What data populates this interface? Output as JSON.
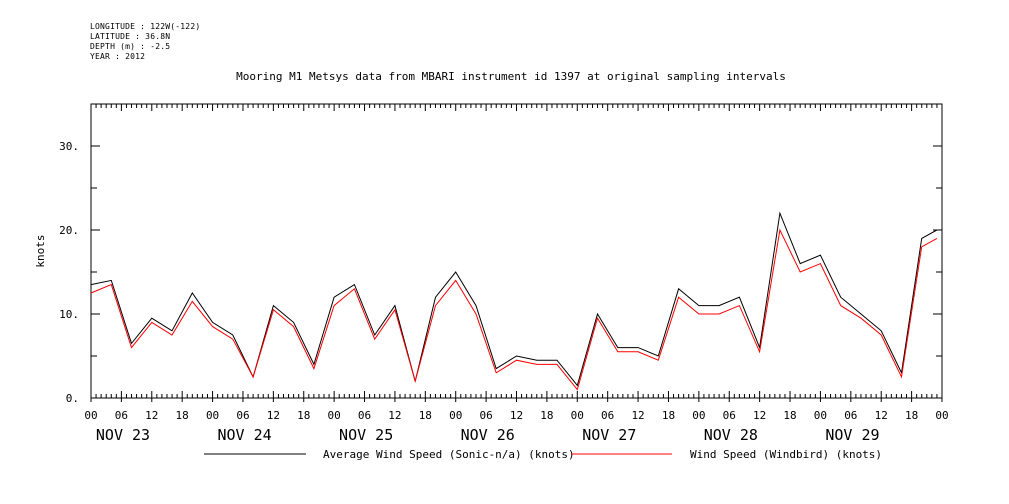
{
  "meta": {
    "longitude": "LONGITUDE : 122W(-122)",
    "latitude": "LATITUDE : 36.8N",
    "depth": "DEPTH (m) : -2.5",
    "year": "YEAR : 2012"
  },
  "chart_data": {
    "type": "line",
    "title": "Mooring M1 Metsys data from MBARI instrument id 1397 at original sampling intervals",
    "ylabel": "knots",
    "xlabel": "",
    "xlim": [
      "2012-11-23T00:00",
      "2012-11-30T00:00"
    ],
    "ylim": [
      0,
      35
    ],
    "y_ticks": [
      0,
      5,
      10,
      15,
      20,
      25,
      30,
      35
    ],
    "y_tick_labels": [
      "0.",
      "10.",
      "20.",
      "30."
    ],
    "y_labeled_ticks": [
      0,
      10,
      20,
      30
    ],
    "x_hour_tick_labels": [
      "00",
      "06",
      "12",
      "18"
    ],
    "x_day_labels": [
      "NOV 23",
      "NOV 24",
      "NOV 25",
      "NOV 26",
      "NOV 27",
      "NOV 28",
      "NOV 29"
    ],
    "x_end_tick_label": "00",
    "grid": false,
    "legend_position": "bottom",
    "series": [
      {
        "name": "Average Wind Speed (Sonic-n/a) (knots)",
        "color": "#000000",
        "x": [
          "2012-11-23T00:00",
          "2012-11-23T04:00",
          "2012-11-23T08:00",
          "2012-11-23T12:00",
          "2012-11-23T16:00",
          "2012-11-23T20:00",
          "2012-11-24T00:00",
          "2012-11-24T04:00",
          "2012-11-24T08:00",
          "2012-11-24T12:00",
          "2012-11-24T16:00",
          "2012-11-24T20:00",
          "2012-11-25T00:00",
          "2012-11-25T04:00",
          "2012-11-25T08:00",
          "2012-11-25T12:00",
          "2012-11-25T16:00",
          "2012-11-25T20:00",
          "2012-11-26T00:00",
          "2012-11-26T04:00",
          "2012-11-26T08:00",
          "2012-11-26T12:00",
          "2012-11-26T16:00",
          "2012-11-26T20:00",
          "2012-11-27T00:00",
          "2012-11-27T04:00",
          "2012-11-27T08:00",
          "2012-11-27T12:00",
          "2012-11-27T16:00",
          "2012-11-27T20:00",
          "2012-11-28T00:00",
          "2012-11-28T04:00",
          "2012-11-28T08:00",
          "2012-11-28T12:00",
          "2012-11-28T16:00",
          "2012-11-28T20:00",
          "2012-11-29T00:00",
          "2012-11-29T04:00",
          "2012-11-29T08:00",
          "2012-11-29T12:00",
          "2012-11-29T16:00",
          "2012-11-29T20:00",
          "2012-11-29T23:00"
        ],
        "y": [
          13.5,
          14,
          6.5,
          9.5,
          8,
          12.5,
          9,
          7.5,
          2.5,
          11,
          9,
          4,
          12,
          13.5,
          7.5,
          11,
          2,
          12,
          15,
          11,
          3.5,
          5,
          4.5,
          4.5,
          1.5,
          10,
          6,
          6,
          5,
          13,
          11,
          11,
          12,
          6,
          22,
          16,
          17,
          12,
          10,
          8,
          3,
          19,
          20
        ]
      },
      {
        "name": "Wind Speed (Windbird) (knots)",
        "color": "#ff0000",
        "x": [
          "2012-11-23T00:00",
          "2012-11-23T04:00",
          "2012-11-23T08:00",
          "2012-11-23T12:00",
          "2012-11-23T16:00",
          "2012-11-23T20:00",
          "2012-11-24T00:00",
          "2012-11-24T04:00",
          "2012-11-24T08:00",
          "2012-11-24T12:00",
          "2012-11-24T16:00",
          "2012-11-24T20:00",
          "2012-11-25T00:00",
          "2012-11-25T04:00",
          "2012-11-25T08:00",
          "2012-11-25T12:00",
          "2012-11-25T16:00",
          "2012-11-25T20:00",
          "2012-11-26T00:00",
          "2012-11-26T04:00",
          "2012-11-26T08:00",
          "2012-11-26T12:00",
          "2012-11-26T16:00",
          "2012-11-26T20:00",
          "2012-11-27T00:00",
          "2012-11-27T04:00",
          "2012-11-27T08:00",
          "2012-11-27T12:00",
          "2012-11-27T16:00",
          "2012-11-27T20:00",
          "2012-11-28T00:00",
          "2012-11-28T04:00",
          "2012-11-28T08:00",
          "2012-11-28T12:00",
          "2012-11-28T16:00",
          "2012-11-28T20:00",
          "2012-11-29T00:00",
          "2012-11-29T04:00",
          "2012-11-29T08:00",
          "2012-11-29T12:00",
          "2012-11-29T16:00",
          "2012-11-29T20:00",
          "2012-11-29T23:00"
        ],
        "y": [
          12.5,
          13.5,
          6,
          9,
          7.5,
          11.5,
          8.5,
          7,
          2.5,
          10.5,
          8.5,
          3.5,
          11,
          13,
          7,
          10.5,
          2,
          11,
          14,
          10,
          3,
          4.5,
          4,
          4,
          1,
          9.5,
          5.5,
          5.5,
          4.5,
          12,
          10,
          10,
          11,
          5.5,
          20,
          15,
          16,
          11,
          9.5,
          7.5,
          2.5,
          18,
          19
        ]
      }
    ]
  }
}
